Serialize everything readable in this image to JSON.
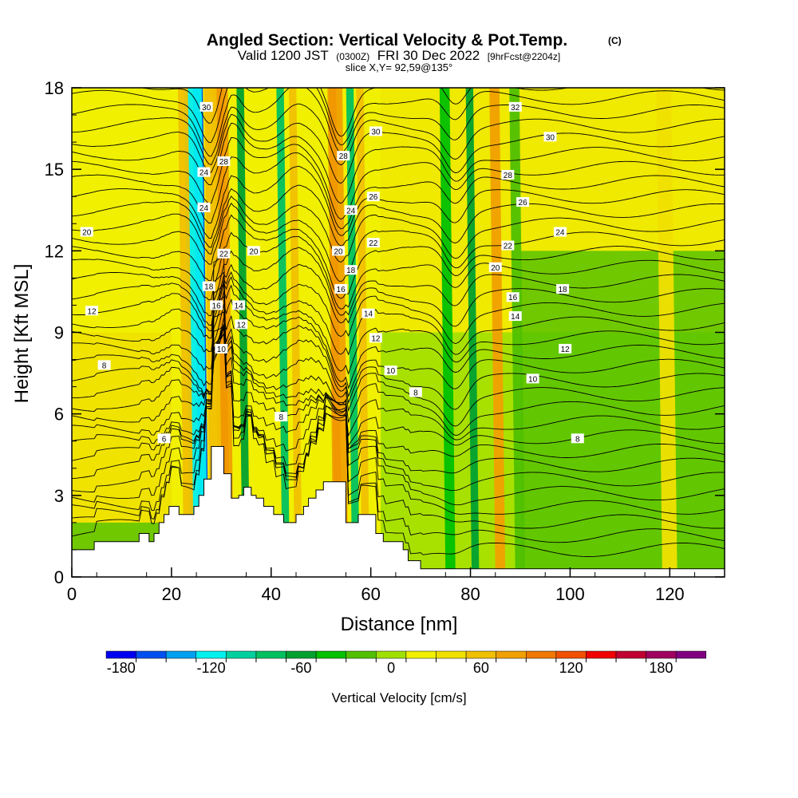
{
  "chart_data": {
    "type": "heatmap",
    "title": "Angled Section: Vertical Velocity & Pot.Temp.",
    "title_mark": "(C)",
    "subtitle": {
      "valid": "Valid 1200 JST",
      "utc": "(0300Z)",
      "date": "FRI 30 Dec 2022",
      "fcst": "[9hrFcst@2204z]"
    },
    "slice_label": "slice X,Y= 92,59@135°",
    "xlabel": "Distance [nm]",
    "ylabel": "Height [Kft MSL]",
    "xlim": [
      0,
      131
    ],
    "ylim": [
      0,
      18
    ],
    "xticks": [
      "0",
      "20",
      "40",
      "60",
      "80",
      "100",
      "120"
    ],
    "yticks": [
      "0",
      "3",
      "6",
      "9",
      "12",
      "15",
      "18"
    ],
    "grid": false,
    "colorbar": {
      "label": "Vertical Velocity [cm/s]",
      "range": [
        -190,
        200
      ],
      "step": 20,
      "tick_labels": [
        "-180",
        "-120",
        "-60",
        "0",
        "60",
        "120",
        "180"
      ],
      "colors": [
        "#0000f0",
        "#0050f0",
        "#00a0f0",
        "#00f0f0",
        "#00d0a0",
        "#00c060",
        "#00a030",
        "#00c000",
        "#50c000",
        "#a0e000",
        "#f0f000",
        "#f0e000",
        "#f0c000",
        "#f0a000",
        "#f07800",
        "#f05000",
        "#f00000",
        "#c00030",
        "#a00060",
        "#800080"
      ]
    },
    "vertical_velocity_bands": [
      {
        "x": 26.5,
        "width": 2.0,
        "value": -170
      },
      {
        "x": 25.5,
        "width": 3.5,
        "value": -120
      },
      {
        "x": 31,
        "width": 1.5,
        "value": 130
      },
      {
        "x": 31,
        "width": 3.0,
        "value": 80
      },
      {
        "x": 29,
        "width": 2.5,
        "value": 60
      },
      {
        "x": 23.5,
        "width": 2.0,
        "value": 55
      },
      {
        "x": 35,
        "width": 1.5,
        "value": -70
      },
      {
        "x": 43,
        "width": 1.5,
        "value": -90
      },
      {
        "x": 45.5,
        "width": 1.5,
        "value": 60
      },
      {
        "x": 53.5,
        "width": 1.5,
        "value": 130
      },
      {
        "x": 54,
        "width": 3.0,
        "value": 80
      },
      {
        "x": 57,
        "width": 1.5,
        "value": -80
      },
      {
        "x": 59,
        "width": 1.5,
        "value": 60
      },
      {
        "x": 76,
        "width": 2.0,
        "value": -50
      },
      {
        "x": 81,
        "width": 1.5,
        "value": -70
      },
      {
        "x": 86,
        "width": 2.0,
        "value": 70
      },
      {
        "x": 90,
        "width": 2.0,
        "value": -30
      },
      {
        "x": 120,
        "width": 3.0,
        "value": 40
      }
    ],
    "potential_temperature_labels": [
      {
        "x": 27,
        "y": 17.3,
        "text": "30"
      },
      {
        "x": 30.5,
        "y": 15.3,
        "text": "28"
      },
      {
        "x": 26.5,
        "y": 14.9,
        "text": "24"
      },
      {
        "x": 26.5,
        "y": 13.6,
        "text": "24"
      },
      {
        "x": 30.5,
        "y": 11.9,
        "text": "22"
      },
      {
        "x": 36.5,
        "y": 12.0,
        "text": "20"
      },
      {
        "x": 27.5,
        "y": 10.7,
        "text": "18"
      },
      {
        "x": 29,
        "y": 10.0,
        "text": "16"
      },
      {
        "x": 33.5,
        "y": 10.0,
        "text": "14"
      },
      {
        "x": 34,
        "y": 9.3,
        "text": "12"
      },
      {
        "x": 30,
        "y": 8.4,
        "text": "10"
      },
      {
        "x": 3,
        "y": 12.7,
        "text": "20"
      },
      {
        "x": 4,
        "y": 9.8,
        "text": "12"
      },
      {
        "x": 6.5,
        "y": 7.8,
        "text": "8"
      },
      {
        "x": 18.5,
        "y": 5.1,
        "text": "6"
      },
      {
        "x": 42,
        "y": 5.9,
        "text": "8"
      },
      {
        "x": 54.5,
        "y": 15.5,
        "text": "28"
      },
      {
        "x": 56,
        "y": 13.5,
        "text": "24"
      },
      {
        "x": 53.5,
        "y": 12.0,
        "text": "20"
      },
      {
        "x": 56,
        "y": 11.3,
        "text": "18"
      },
      {
        "x": 54,
        "y": 10.6,
        "text": "16"
      },
      {
        "x": 59.5,
        "y": 9.7,
        "text": "14"
      },
      {
        "x": 61,
        "y": 8.8,
        "text": "12"
      },
      {
        "x": 64,
        "y": 7.6,
        "text": "10"
      },
      {
        "x": 69,
        "y": 6.8,
        "text": "8"
      },
      {
        "x": 61,
        "y": 16.4,
        "text": "30"
      },
      {
        "x": 60.5,
        "y": 14.0,
        "text": "26"
      },
      {
        "x": 60.5,
        "y": 12.3,
        "text": "22"
      },
      {
        "x": 89,
        "y": 17.3,
        "text": "32"
      },
      {
        "x": 96,
        "y": 16.2,
        "text": "30"
      },
      {
        "x": 87.5,
        "y": 14.8,
        "text": "28"
      },
      {
        "x": 90.5,
        "y": 13.8,
        "text": "26"
      },
      {
        "x": 98,
        "y": 12.7,
        "text": "24"
      },
      {
        "x": 87.5,
        "y": 12.2,
        "text": "22"
      },
      {
        "x": 85,
        "y": 11.4,
        "text": "20"
      },
      {
        "x": 98.5,
        "y": 10.6,
        "text": "18"
      },
      {
        "x": 88.5,
        "y": 10.3,
        "text": "16"
      },
      {
        "x": 89,
        "y": 9.6,
        "text": "14"
      },
      {
        "x": 99,
        "y": 8.4,
        "text": "12"
      },
      {
        "x": 92.5,
        "y": 7.3,
        "text": "10"
      },
      {
        "x": 101.5,
        "y": 5.1,
        "text": "8"
      }
    ],
    "terrain_kft": [
      {
        "x": 0,
        "h": 1.0
      },
      {
        "x": 4,
        "h": 1.0
      },
      {
        "x": 4.5,
        "h": 1.3
      },
      {
        "x": 13,
        "h": 1.3
      },
      {
        "x": 13.5,
        "h": 1.6
      },
      {
        "x": 15.5,
        "h": 1.3
      },
      {
        "x": 16.5,
        "h": 1.6
      },
      {
        "x": 17.5,
        "h": 2.0
      },
      {
        "x": 18.5,
        "h": 2.3
      },
      {
        "x": 19.5,
        "h": 2.6
      },
      {
        "x": 21.5,
        "h": 2.3
      },
      {
        "x": 23.5,
        "h": 2.3
      },
      {
        "x": 24.5,
        "h": 2.6
      },
      {
        "x": 25.5,
        "h": 3.0
      },
      {
        "x": 26.5,
        "h": 3.6
      },
      {
        "x": 28,
        "h": 4.8
      },
      {
        "x": 30.5,
        "h": 3.8
      },
      {
        "x": 32,
        "h": 2.9
      },
      {
        "x": 33.5,
        "h": 3.0
      },
      {
        "x": 34.5,
        "h": 3.3
      },
      {
        "x": 36,
        "h": 3.0
      },
      {
        "x": 37,
        "h": 2.9
      },
      {
        "x": 38.5,
        "h": 2.6
      },
      {
        "x": 40.5,
        "h": 2.3
      },
      {
        "x": 42.5,
        "h": 2.0
      },
      {
        "x": 44,
        "h": 2.0
      },
      {
        "x": 45,
        "h": 2.3
      },
      {
        "x": 46.5,
        "h": 2.6
      },
      {
        "x": 47.5,
        "h": 2.9
      },
      {
        "x": 49,
        "h": 3.2
      },
      {
        "x": 50.5,
        "h": 3.5
      },
      {
        "x": 53.5,
        "h": 3.5
      },
      {
        "x": 55,
        "h": 2.0
      },
      {
        "x": 57,
        "h": 2.0
      },
      {
        "x": 57.5,
        "h": 2.3
      },
      {
        "x": 60,
        "h": 2.3
      },
      {
        "x": 61,
        "h": 1.6
      },
      {
        "x": 62.5,
        "h": 1.3
      },
      {
        "x": 66.5,
        "h": 1.0
      },
      {
        "x": 67.5,
        "h": 0.6
      },
      {
        "x": 70,
        "h": 0.3
      },
      {
        "x": 131,
        "h": 0.3
      }
    ]
  }
}
